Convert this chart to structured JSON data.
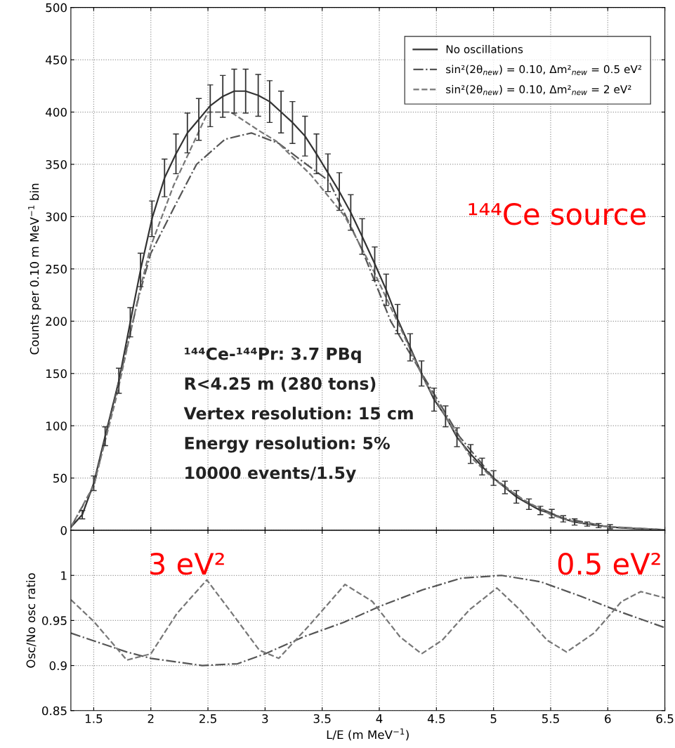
{
  "chart_data": [
    {
      "type": "line",
      "ylabel": "Counts per 0.10 m MeV$^{−1}$ bin",
      "xlim": [
        1.3,
        6.5
      ],
      "xticks": [
        1.5,
        2,
        2.5,
        3,
        3.5,
        4,
        4.5,
        5,
        5.5,
        6,
        6.5
      ],
      "ylim": [
        0,
        500
      ],
      "yticks": [
        0,
        50,
        100,
        150,
        200,
        250,
        300,
        350,
        400,
        450,
        500
      ],
      "tick_labels": "y",
      "grid": true,
      "legend": "top right",
      "series": [
        {
          "name": "No oscillations",
          "color": "#333333",
          "line_style": "solid",
          "x": [
            1.3,
            1.4,
            1.5,
            1.6,
            1.72,
            1.82,
            1.91,
            2.01,
            2.12,
            2.22,
            2.32,
            2.42,
            2.52,
            2.63,
            2.73,
            2.83,
            2.94,
            3.04,
            3.14,
            3.24,
            3.35,
            3.45,
            3.55,
            3.65,
            3.75,
            3.85,
            3.96,
            4.06,
            4.16,
            4.27,
            4.37,
            4.48,
            4.58,
            4.68,
            4.8,
            4.9,
            5.0,
            5.1,
            5.2,
            5.31,
            5.41,
            5.51,
            5.61,
            5.71,
            5.82,
            5.92,
            6.02,
            6.12,
            6.22,
            6.32,
            6.42,
            6.5
          ],
          "values": [
            3,
            15,
            45,
            90,
            143,
            199,
            249,
            298,
            337,
            360,
            380,
            393,
            406,
            415,
            420,
            420,
            416,
            410,
            400,
            390,
            377,
            360,
            342,
            324,
            304,
            281,
            255,
            230,
            202,
            175,
            150,
            125,
            109,
            89,
            73,
            61,
            50,
            41,
            32,
            25,
            19,
            16,
            11,
            8,
            6,
            4.5,
            3.4,
            2.3,
            1.8,
            1.3,
            0.9,
            0.5
          ],
          "errors": [
            null,
            4,
            7,
            9,
            12,
            14,
            16,
            17,
            18,
            19,
            19,
            20,
            20,
            20,
            21,
            21,
            20,
            20,
            20,
            20,
            19,
            19,
            18,
            18,
            17,
            17,
            16,
            15,
            14,
            13,
            12,
            11,
            10,
            9,
            9,
            8,
            7,
            6,
            6,
            5,
            4,
            4,
            3,
            3,
            2,
            2,
            2,
            null,
            null,
            null,
            null,
            null
          ]
        },
        {
          "name": "sin²(2θ$_{new}$) = 0.10, Δm²$_{new}$ = 0.5 eV²",
          "color": "#555555",
          "line_style": "dashdot",
          "x": [
            1.3,
            1.5,
            1.7,
            1.9,
            2.0,
            2.2,
            2.4,
            2.65,
            2.88,
            3.12,
            3.35,
            3.56,
            3.85,
            4.1,
            4.4,
            4.7,
            5.0,
            5.3,
            5.6,
            6.0,
            6.5
          ],
          "values": [
            3,
            42,
            133,
            226,
            265,
            308,
            350,
            374,
            380,
            370,
            351,
            334,
            268,
            200,
            145,
            90,
            50,
            26,
            12,
            3.3,
            0.5
          ]
        },
        {
          "name": "sin²(2θ$_{new}$) = 0.10, Δm²$_{new}$ = 2 eV²",
          "color": "#777777",
          "line_style": "dashed",
          "x": [
            1.3,
            1.5,
            1.7,
            1.9,
            2.0,
            2.2,
            2.5,
            2.7,
            2.95,
            3.1,
            3.4,
            3.7,
            3.95,
            4.2,
            4.4,
            4.6,
            4.8,
            5.0,
            5.25,
            5.5,
            5.7,
            6.0,
            6.5
          ],
          "values": [
            3,
            43,
            128,
            228,
            272,
            330,
            400,
            400,
            382,
            372,
            340,
            300,
            248,
            190,
            142,
            105,
            70,
            49,
            30,
            15,
            8,
            3.5,
            0.5
          ]
        }
      ],
      "annotations": [
        "¹⁴⁴Ce source",
        "¹⁴⁴Ce-¹⁴⁴Pr: 3.7 PBq",
        "R<4.25 m (280 tons)",
        "Vertex resolution: 15 cm",
        "Energy resolution: 5%",
        "10000 events/1.5y"
      ]
    },
    {
      "type": "line",
      "xlabel": "L/E (m MeV$^{−1}$)",
      "ylabel": "Osc/No osc ratio",
      "xlim": [
        1.3,
        6.5
      ],
      "xticks": [
        1.5,
        2,
        2.5,
        3,
        3.5,
        4,
        4.5,
        5,
        5.5,
        6,
        6.5
      ],
      "ylim": [
        0.85,
        1.05
      ],
      "yticks": [
        0.85,
        0.9,
        0.95,
        1
      ],
      "grid": true,
      "series": [
        {
          "color": "#555555",
          "line_style": "dashdot",
          "x": [
            1.3,
            1.79,
            2.0,
            2.45,
            2.76,
            3.0,
            3.34,
            3.69,
            4.03,
            4.38,
            4.72,
            5.07,
            5.41,
            5.76,
            6.1,
            6.5
          ],
          "values": [
            0.936,
            0.915,
            0.908,
            0.9,
            0.902,
            0.913,
            0.932,
            0.948,
            0.967,
            0.984,
            0.997,
            1.0,
            0.993,
            0.977,
            0.96,
            0.942
          ]
        },
        {
          "color": "#777777",
          "line_style": "dashed",
          "x": [
            1.3,
            1.5,
            1.79,
            2.0,
            2.23,
            2.49,
            2.71,
            2.95,
            3.12,
            3.39,
            3.7,
            3.94,
            4.18,
            4.37,
            4.55,
            4.79,
            5.03,
            5.23,
            5.47,
            5.64,
            5.88,
            6.12,
            6.29,
            6.5
          ],
          "values": [
            0.973,
            0.949,
            0.906,
            0.913,
            0.958,
            0.995,
            0.958,
            0.917,
            0.908,
            0.945,
            0.99,
            0.971,
            0.932,
            0.913,
            0.928,
            0.962,
            0.986,
            0.962,
            0.928,
            0.915,
            0.936,
            0.971,
            0.982,
            0.975
          ]
        }
      ],
      "annotations": [
        "3 eV²",
        "0.5 eV²"
      ]
    }
  ]
}
